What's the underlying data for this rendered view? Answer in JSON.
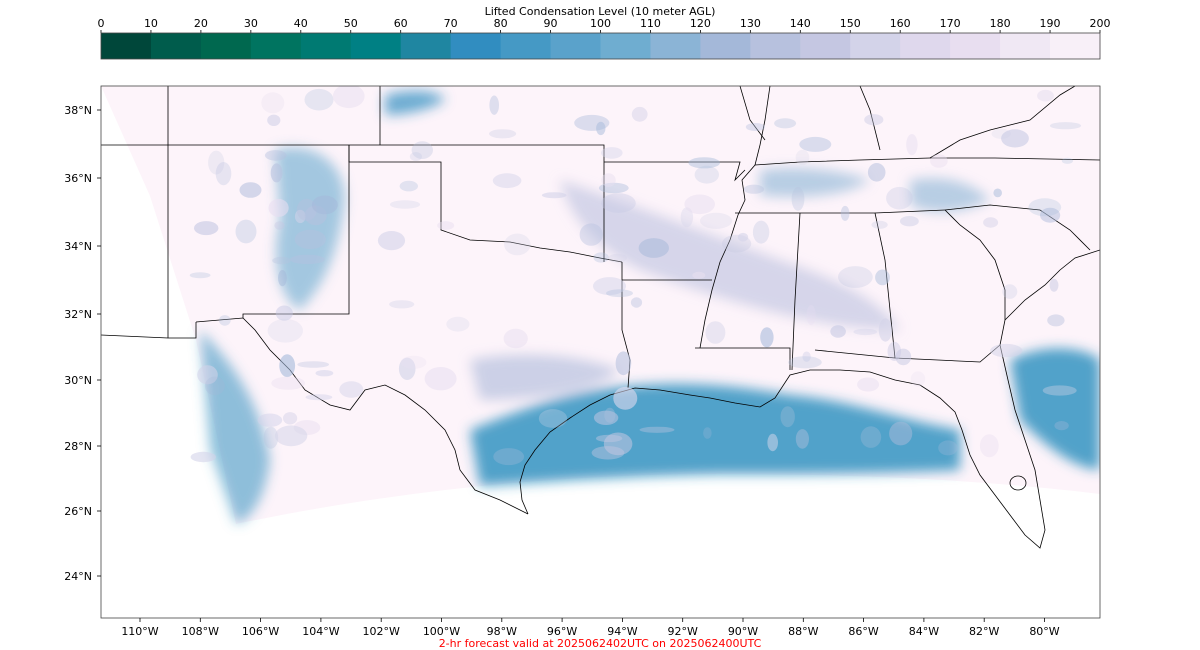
{
  "colorbar": {
    "title": "Lifted Condensation Level (10 meter AGL)",
    "ticks": [
      "0",
      "10",
      "20",
      "30",
      "40",
      "50",
      "60",
      "70",
      "80",
      "90",
      "100",
      "110",
      "120",
      "130",
      "140",
      "150",
      "160",
      "170",
      "180",
      "190",
      "200"
    ],
    "colors": [
      "#00473a",
      "#005c4c",
      "#00684f",
      "#007460",
      "#007a72",
      "#008084",
      "#1f86a1",
      "#318dc0",
      "#4599c5",
      "#5aa2cb",
      "#6fadd0",
      "#8bb4d6",
      "#a4b8d9",
      "#b7c1de",
      "#c5c7e2",
      "#d3d3e9",
      "#dfd8ed",
      "#e8def0",
      "#f0e8f4",
      "#f8f0f8"
    ]
  },
  "map": {
    "lat_labels": [
      "38°N",
      "36°N",
      "34°N",
      "32°N",
      "30°N",
      "28°N",
      "26°N",
      "24°N"
    ],
    "lon_labels": [
      "110°W",
      "108°W",
      "106°W",
      "104°W",
      "102°W",
      "100°W",
      "98°W",
      "96°W",
      "94°W",
      "92°W",
      "90°W",
      "88°W",
      "86°W",
      "84°W",
      "82°W",
      "80°W"
    ],
    "field_color_base": "#fdf4fa",
    "moist_color": "#3191bf",
    "boundary_color": "#000000"
  },
  "footer": {
    "text": "2-hr forecast valid at 2025062402UTC on 2025062400UTC",
    "color": "#ff0000"
  }
}
